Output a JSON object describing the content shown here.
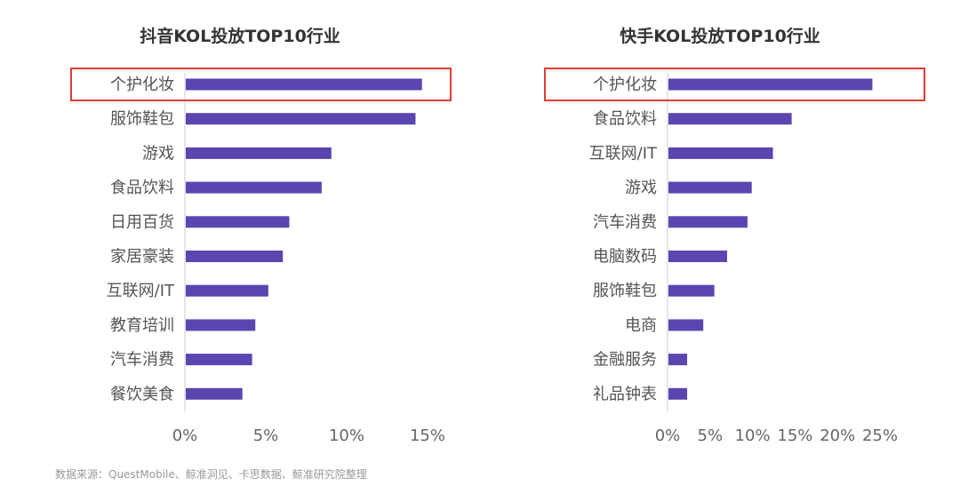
{
  "colors": {
    "bar": "#5b45b0",
    "highlight": "#e03c31",
    "label": "#555555",
    "tick": "#666666",
    "axis": "#cccccc"
  },
  "source": "数据来源：QuestMobile、鲸准洞见、卡思数据、鲸准研究院整理",
  "chart_data": [
    {
      "type": "bar",
      "orientation": "horizontal",
      "title": "抖音KOL投放TOP10行业",
      "categories": [
        "个护化妆",
        "服饰鞋包",
        "游戏",
        "食品饮料",
        "日用百货",
        "家居豪装",
        "互联网/IT",
        "教育培训",
        "汽车消费",
        "餐饮美食"
      ],
      "values": [
        14.6,
        14.2,
        9.0,
        8.4,
        6.4,
        6.0,
        5.1,
        4.3,
        4.1,
        3.5
      ],
      "xlim": [
        0,
        15
      ],
      "xticks": [
        0,
        5,
        10,
        15
      ],
      "xtick_labels": [
        "0%",
        "5%",
        "10%",
        "15%"
      ],
      "highlight_category": "个护化妆",
      "grid": false
    },
    {
      "type": "bar",
      "orientation": "horizontal",
      "title": "快手KOL投放TOP10行业",
      "categories": [
        "个护化妆",
        "食品饮料",
        "互联网/IT",
        "游戏",
        "汽车消费",
        "电脑数码",
        "服饰鞋包",
        "电商",
        "金融服务",
        "礼品钟表"
      ],
      "values": [
        24.0,
        14.5,
        12.3,
        9.8,
        9.3,
        6.9,
        5.4,
        4.1,
        2.2,
        2.2
      ],
      "xlim": [
        0,
        25
      ],
      "xticks": [
        0,
        5,
        10,
        15,
        20,
        25
      ],
      "xtick_labels": [
        "0%",
        "5%",
        "10%",
        "15%",
        "20%",
        "25%"
      ],
      "highlight_category": "个护化妆",
      "grid": false
    }
  ]
}
